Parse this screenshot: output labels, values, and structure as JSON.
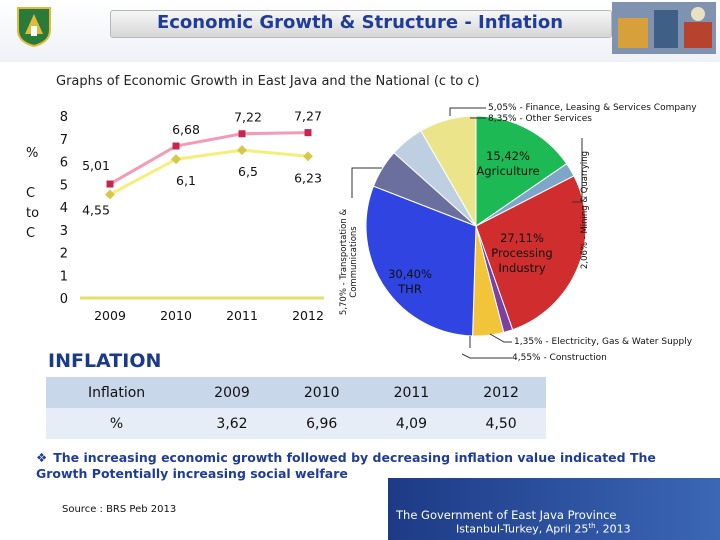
{
  "header": {
    "title": "Economic Growth & Structure - Inflation"
  },
  "subtitle": "Graphs of Economic Growth in East Java and the National (c to c)",
  "side_label": {
    "percent": "%",
    "line1": "C",
    "line2": "to",
    "line3": "C"
  },
  "chart_data": [
    {
      "type": "line",
      "categories": [
        "2009",
        "2010",
        "2011",
        "2012"
      ],
      "series": [
        {
          "values": [
            5.01,
            6.68,
            7.22,
            7.27
          ],
          "color": "#f29bb4",
          "labels": [
            "5,01",
            "6,68",
            "7,22",
            "7,27"
          ]
        },
        {
          "values": [
            4.55,
            6.1,
            6.5,
            6.23
          ],
          "color": "#f5ef7a",
          "labels": [
            "4,55",
            "6,1",
            "6,5",
            "6,23"
          ]
        }
      ],
      "ylim": [
        0,
        8
      ],
      "yticks": [
        "0",
        "1",
        "2",
        "3",
        "4",
        "5",
        "6",
        "7",
        "8"
      ],
      "grid": false
    },
    {
      "type": "pie",
      "slices": [
        {
          "label": "15,42% Agriculture",
          "value": 15.42,
          "color": "#1db954"
        },
        {
          "label": "2,06% - Mining & Quarrying",
          "value": 2.06,
          "color": "#7da6c8"
        },
        {
          "label": "27,11% Processing Industry",
          "value": 27.11,
          "color": "#d02e2e"
        },
        {
          "label": "1,35% - Electricity, Gas & Water Supply",
          "value": 1.35,
          "color": "#7e3fa3"
        },
        {
          "label": "4,55% - Construction",
          "value": 4.55,
          "color": "#f2c43a"
        },
        {
          "label": "30,40% THR",
          "value": 30.4,
          "color": "#2f44e0"
        },
        {
          "label": "5,70% - Transportation & Communications",
          "value": 5.7,
          "color": "#6b6f9e"
        },
        {
          "label": "5,05% - Finance, Leasing & Services Company",
          "value": 5.05,
          "color": "#bfcfe2"
        },
        {
          "label": "8,35% - Other Services",
          "value": 8.35,
          "color": "#ece48a"
        }
      ],
      "inside_labels": {
        "agriculture": [
          "15,42%",
          "Agriculture"
        ],
        "industry": [
          "27,11%",
          "Processing",
          "Industry"
        ],
        "thr": [
          "30,40%",
          "THR"
        ]
      },
      "callouts": {
        "finance": "5,05% - Finance, Leasing & Services Company",
        "other": "8,35% - Other Services",
        "mining": "2,06% - Mining & Quarrying",
        "transport1": "5,70% - Transportation &",
        "transport2": "Communications",
        "electricity": "1,35% - Electricity, Gas & Water Supply",
        "construction": "4,55% - Construction"
      }
    }
  ],
  "inflation": {
    "title": "INFLATION",
    "header": [
      "Inflation",
      "2009",
      "2010",
      "2011",
      "2012"
    ],
    "row": [
      "%",
      "3,62",
      "6,96",
      "4,09",
      "4,50"
    ]
  },
  "note": "The increasing economic growth followed by decreasing inflation value indicated The Growth Potentially increasing social welfare",
  "source": "Source : BRS Peb 2013",
  "footer": {
    "line1": "The Government of East Java Province",
    "line2_pre": "Istanbul-Turkey, April 25",
    "line2_sup": "th",
    "line2_post": ", 2013"
  },
  "colors": {
    "title_blue": "#1f3c99",
    "accent": "#1a3a8a"
  }
}
